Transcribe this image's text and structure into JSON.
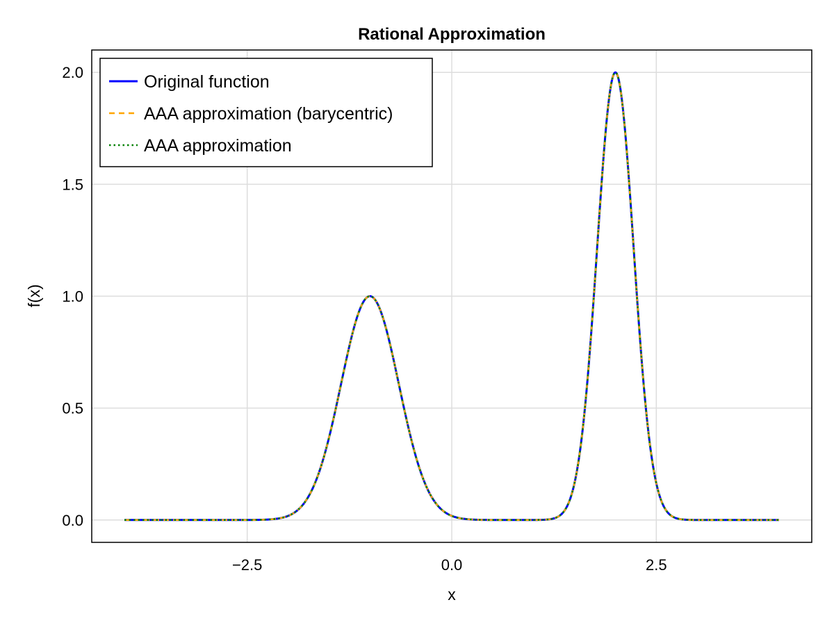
{
  "chart_data": {
    "type": "line",
    "title": "Rational Approximation",
    "xlabel": "x",
    "ylabel": "f(x)",
    "xlim": [
      -4.4,
      4.4
    ],
    "ylim": [
      -0.1,
      2.1
    ],
    "x_ticks": [
      -2.5,
      0.0,
      2.5
    ],
    "x_tick_labels": [
      "−2.5",
      "0.0",
      "2.5"
    ],
    "y_ticks": [
      0.0,
      0.5,
      1.0,
      1.5,
      2.0
    ],
    "y_tick_labels": [
      "0.0",
      "0.5",
      "1.0",
      "1.5",
      "2.0"
    ],
    "grid": true,
    "legend_position": "top-left",
    "x_domain": [
      -4,
      4
    ],
    "function_model": "exp(-4*(x+1)^2) + 2*exp(-10*(x-2)^2)",
    "sample_x": [
      -4,
      -3,
      -2,
      -1.5,
      -1,
      -0.5,
      0,
      1,
      1.5,
      2,
      2.5,
      3,
      4
    ],
    "sample_y": [
      0.0,
      0.0,
      0.018,
      0.368,
      1.0,
      0.368,
      0.018,
      0.0,
      0.164,
      2.0,
      0.164,
      0.0,
      0.0
    ],
    "series": [
      {
        "name": "Original function",
        "color": "#0000ff",
        "style": "solid"
      },
      {
        "name": "AAA approximation (barycentric)",
        "color": "#ffa500",
        "style": "dashed"
      },
      {
        "name": "AAA approximation",
        "color": "#008000",
        "style": "dotted"
      }
    ]
  }
}
